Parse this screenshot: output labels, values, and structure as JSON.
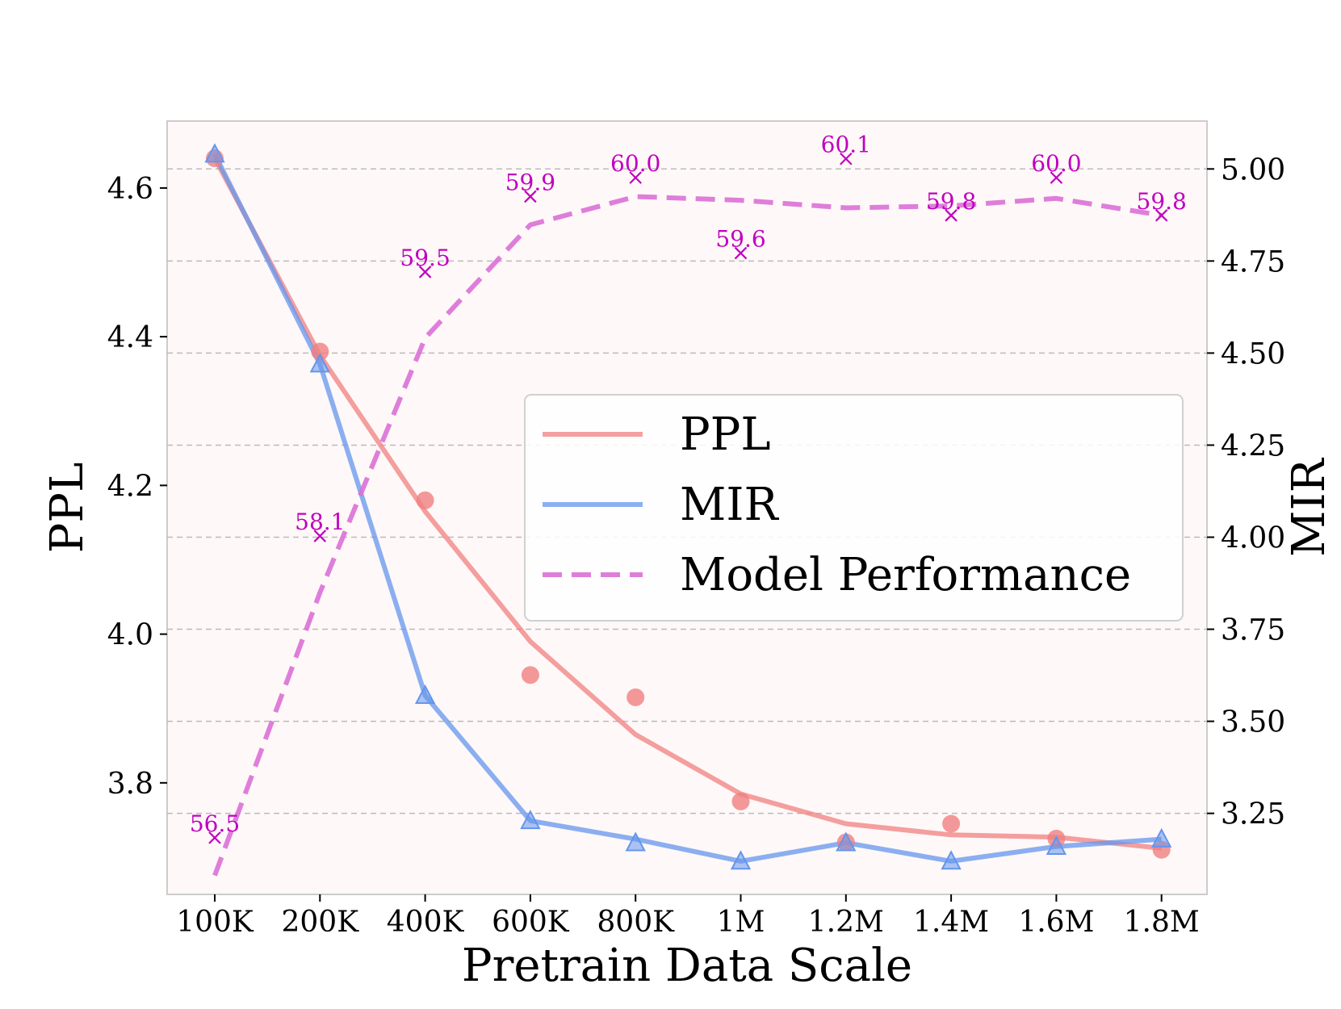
{
  "chart_data": {
    "type": "line",
    "categories": [
      "100K",
      "200K",
      "400K",
      "600K",
      "800K",
      "1M",
      "1.2M",
      "1.4M",
      "1.6M",
      "1.8M"
    ],
    "xlabel": "Pretrain Data Scale",
    "ylabel_left": "PPL",
    "ylabel_right": "MIR",
    "ylim_left": [
      3.65,
      4.69
    ],
    "yticks_left": [
      "3.8",
      "4.0",
      "4.2",
      "4.4",
      "4.6"
    ],
    "yticks_left_values": [
      3.8,
      4.0,
      4.2,
      4.4,
      4.6
    ],
    "ylim_right": [
      3.03,
      5.13
    ],
    "yticks_right": [
      "3.25",
      "3.50",
      "3.75",
      "4.00",
      "4.25",
      "4.50",
      "4.75",
      "5.00"
    ],
    "yticks_right_values": [
      3.25,
      3.5,
      3.75,
      4.0,
      4.25,
      4.5,
      4.75,
      5.0
    ],
    "perf_range": [
      56.2,
      60.3
    ],
    "grid": "horizontal-dashed",
    "legend_position": "center-right",
    "series": [
      {
        "name": "PPL",
        "axis": "left",
        "color": "#f08080",
        "style": "solid",
        "marker": "circle",
        "points": [
          4.64,
          4.38,
          4.18,
          3.945,
          3.915,
          3.775,
          3.72,
          3.745,
          3.725,
          3.71
        ],
        "fit": [
          4.64,
          4.375,
          4.165,
          3.99,
          3.865,
          3.785,
          3.745,
          3.73,
          3.727,
          3.712
        ]
      },
      {
        "name": "MIR",
        "axis": "right",
        "color": "#6495ed",
        "style": "solid",
        "marker": "triangle",
        "points": [
          5.04,
          4.47,
          3.57,
          3.23,
          3.17,
          3.12,
          3.17,
          3.12,
          3.16,
          3.18
        ],
        "fit": [
          5.04,
          4.47,
          3.57,
          3.23,
          3.18,
          3.12,
          3.17,
          3.12,
          3.16,
          3.18
        ]
      },
      {
        "name": "Model Performance",
        "axis": "performance",
        "color": "#da70d6",
        "style": "dashed",
        "marker": "x",
        "points": [
          56.5,
          58.1,
          59.5,
          59.9,
          60.0,
          59.6,
          60.1,
          59.8,
          60.0,
          59.8
        ],
        "labels": [
          "56.5",
          "58.1",
          "59.5",
          "59.9",
          "60.0",
          "59.6",
          "60.1",
          "59.8",
          "60.0",
          "59.8"
        ],
        "fit": [
          56.3,
          57.8,
          59.15,
          59.75,
          59.9,
          59.88,
          59.84,
          59.85,
          59.89,
          59.8
        ]
      }
    ]
  }
}
